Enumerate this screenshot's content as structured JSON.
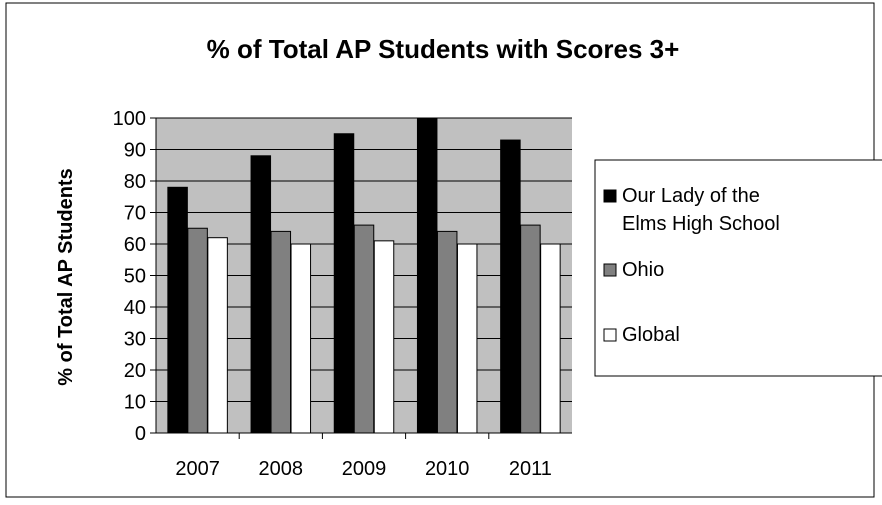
{
  "chart_data": {
    "type": "bar",
    "title": "% of Total AP Students with Scores 3+",
    "ylabel": "% of Total AP Students",
    "xlabel": "",
    "categories": [
      "2007",
      "2008",
      "2009",
      "2010",
      "2011"
    ],
    "ylim": [
      0,
      100
    ],
    "yticks": [
      0,
      10,
      20,
      30,
      40,
      50,
      60,
      70,
      80,
      90,
      100
    ],
    "grid": true,
    "legend_position": "right",
    "plot_background": "#c0c0c0",
    "series": [
      {
        "name": "Our Lady of the Elms High School",
        "legend_lines": [
          "Our Lady of the",
          "Elms High School"
        ],
        "color": "#000000",
        "values": [
          78,
          88,
          95,
          100,
          93
        ]
      },
      {
        "name": "Ohio",
        "legend_lines": [
          "Ohio"
        ],
        "color": "#808080",
        "values": [
          65,
          64,
          66,
          64,
          66
        ]
      },
      {
        "name": "Global",
        "legend_lines": [
          "Global"
        ],
        "color": "#ffffff",
        "values": [
          62,
          60,
          61,
          60,
          60
        ]
      }
    ]
  }
}
